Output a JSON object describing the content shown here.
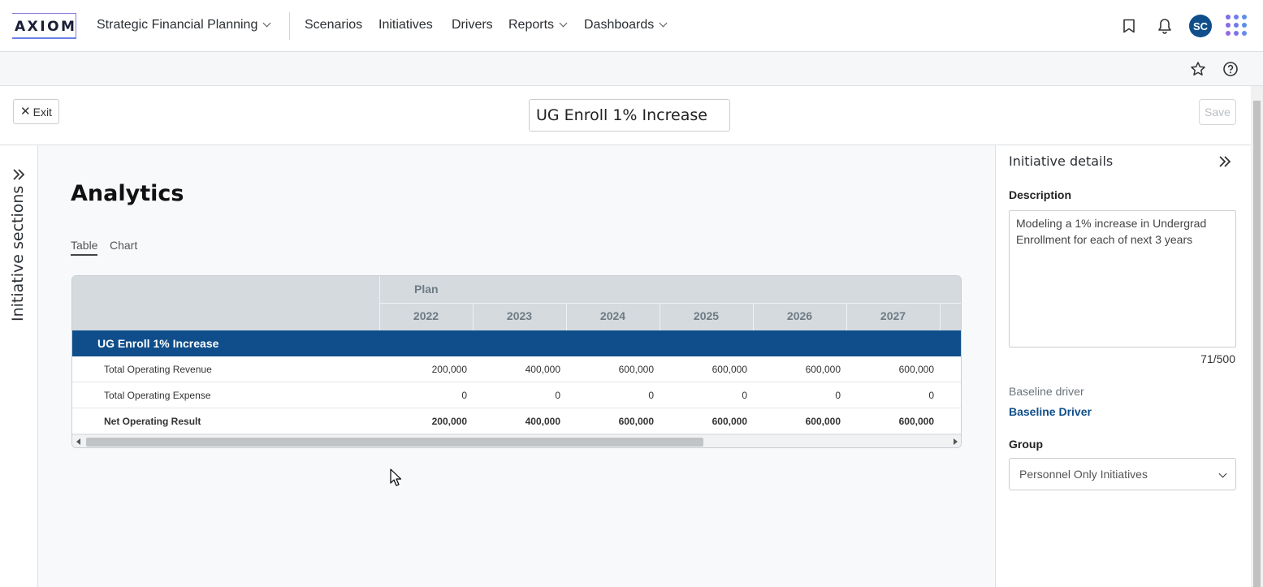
{
  "topnav": {
    "logo": "AXIOM",
    "app_menu": "Strategic Financial Planning",
    "items": [
      "Scenarios",
      "Initiatives",
      "Drivers",
      "Reports",
      "Dashboards"
    ],
    "avatar_initials": "SC"
  },
  "header": {
    "exit_label": "Exit",
    "title_value": "UG Enroll 1% Increase",
    "save_label": "Save"
  },
  "left_rail": {
    "label": "Initiative sections"
  },
  "main": {
    "title": "Analytics",
    "tabs": [
      "Table",
      "Chart"
    ],
    "active_tab": "Table",
    "table": {
      "group_header": "Plan",
      "years": [
        "2022",
        "2023",
        "2024",
        "2025",
        "2026",
        "2027"
      ],
      "group_row": "UG Enroll 1% Increase",
      "rows": [
        {
          "label": "Total Operating Revenue",
          "values": [
            "200,000",
            "400,000",
            "600,000",
            "600,000",
            "600,000",
            "600,000"
          ],
          "bold": false
        },
        {
          "label": "Total Operating Expense",
          "values": [
            "0",
            "0",
            "0",
            "0",
            "0",
            "0"
          ],
          "bold": false
        },
        {
          "label": "Net Operating Result",
          "values": [
            "200,000",
            "400,000",
            "600,000",
            "600,000",
            "600,000",
            "600,000"
          ],
          "bold": true
        }
      ]
    }
  },
  "right_panel": {
    "title": "Initiative details",
    "description_label": "Description",
    "description": "Modeling a 1% increase in Undergrad Enrollment for each of next 3 years",
    "counter": "71/500",
    "baseline_label": "Baseline driver",
    "baseline_value": "Baseline Driver",
    "group_label": "Group",
    "group_value": "Personnel Only Initiatives"
  },
  "colors": {
    "brand_blue": "#0f4e8a",
    "header_gray": "#d4dade"
  }
}
